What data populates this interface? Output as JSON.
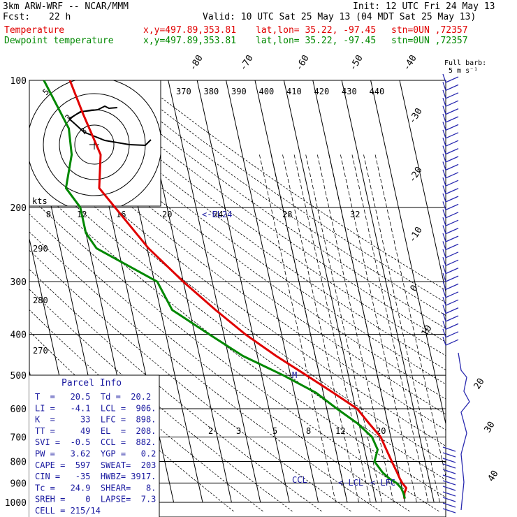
{
  "header": {
    "model_title": "3km ARW-WRF -- NCAR/MMM",
    "init": "Init: 12 UTC Fri 24 May 13",
    "fcst_label": "Fcst:",
    "fcst_value": "22 h",
    "valid": "Valid: 10 UTC Sat 25 May 13 (04 MDT Sat 25 May 13)",
    "temp_label": "Temperature",
    "dew_label": "Dewpoint temperature",
    "xy": "x,y=497.89,353.81",
    "latlon": "lat,lon= 35.22, -97.45",
    "stn": "stn=0UN ,72357"
  },
  "colors": {
    "temperature": "#e00000",
    "dewpoint": "#008800",
    "wind": "#2a2ab0",
    "annotation": "#1a1aa0"
  },
  "barb_legend": {
    "line1": "Full barb:",
    "line2": "5 m s⁻¹"
  },
  "hodograph": {
    "ring_labels": [
      "5",
      "3",
      "3"
    ],
    "units_label": "kts"
  },
  "parcel_info": {
    "title": "Parcel Info",
    "rows": [
      "T  =   20.5  Td =  20.2",
      "LI =   -4.1  LCL =  906.",
      "K  =     33  LFC =  898.",
      "TT =     49  EL  =  208.",
      "SVI =  -0.5  CCL =  882.",
      "PW =   3.62  YGP =   0.2",
      "CAPE =  597  SWEAT=  203",
      "CIN =   -35  HWBZ= 3917.",
      "Tc =   24.9  SHEAR=   8.",
      "SREH =    0  LAPSE=  7.3",
      "CELL = 215/14"
    ]
  },
  "annotations": {
    "el": "<-EL24",
    "lcl": "<-LCL",
    "lfc": "< LFC",
    "ccl": "CCL",
    "m": "M"
  },
  "chart_data": {
    "type": "line",
    "title": "Skew-T log-P sounding",
    "pressure_axis": {
      "ticks": [
        100,
        200,
        300,
        400,
        500,
        600,
        700,
        800,
        900,
        1000
      ],
      "range": [
        100,
        1000
      ]
    },
    "isotherm_labels": [
      "-80",
      "-70",
      "-60",
      "-50",
      "-40",
      "-30",
      "-20",
      "-10",
      "0",
      "10",
      "20",
      "30",
      "40"
    ],
    "theta_e_labels": [
      "370",
      "380",
      "390",
      "400",
      "410",
      "420",
      "430",
      "440"
    ],
    "theta_labels": [
      "290",
      "280",
      "270"
    ],
    "mixing_ratio_labels": [
      "8",
      "12",
      "16",
      "20",
      "24",
      "28",
      "32"
    ],
    "low_mixing_ratio_labels": [
      "2",
      "3",
      "5",
      "8",
      "12",
      "20"
    ],
    "series": [
      {
        "name": "Temperature",
        "p": [
          100,
          120,
          150,
          180,
          200,
          250,
          300,
          350,
          400,
          450,
          500,
          550,
          600,
          650,
          700,
          750,
          800,
          850,
          880,
          900,
          925,
          950,
          980
        ],
        "t": [
          -64,
          -62,
          -59,
          -62,
          -58,
          -49.5,
          -40,
          -31,
          -22.5,
          -13.5,
          -4.5,
          3.5,
          10.5,
          13.5,
          16.5,
          17.5,
          18.5,
          19.5,
          20,
          20.5,
          21.5,
          20.5,
          20
        ]
      },
      {
        "name": "Dewpoint temperature",
        "p": [
          100,
          130,
          150,
          180,
          200,
          230,
          250,
          300,
          350,
          400,
          450,
          500,
          550,
          600,
          650,
          700,
          750,
          800,
          850,
          880,
          900,
          925,
          950,
          980
        ],
        "td": [
          -73,
          -68,
          -69,
          -73.5,
          -70,
          -70,
          -67.5,
          -49,
          -46,
          -35,
          -25,
          -12.5,
          -2.5,
          3.5,
          9.5,
          13.5,
          14.5,
          12.5,
          14.5,
          16.5,
          18.5,
          19.7,
          20.1,
          20.2
        ]
      }
    ],
    "hodograph_rings": [
      10,
      20,
      30
    ]
  }
}
